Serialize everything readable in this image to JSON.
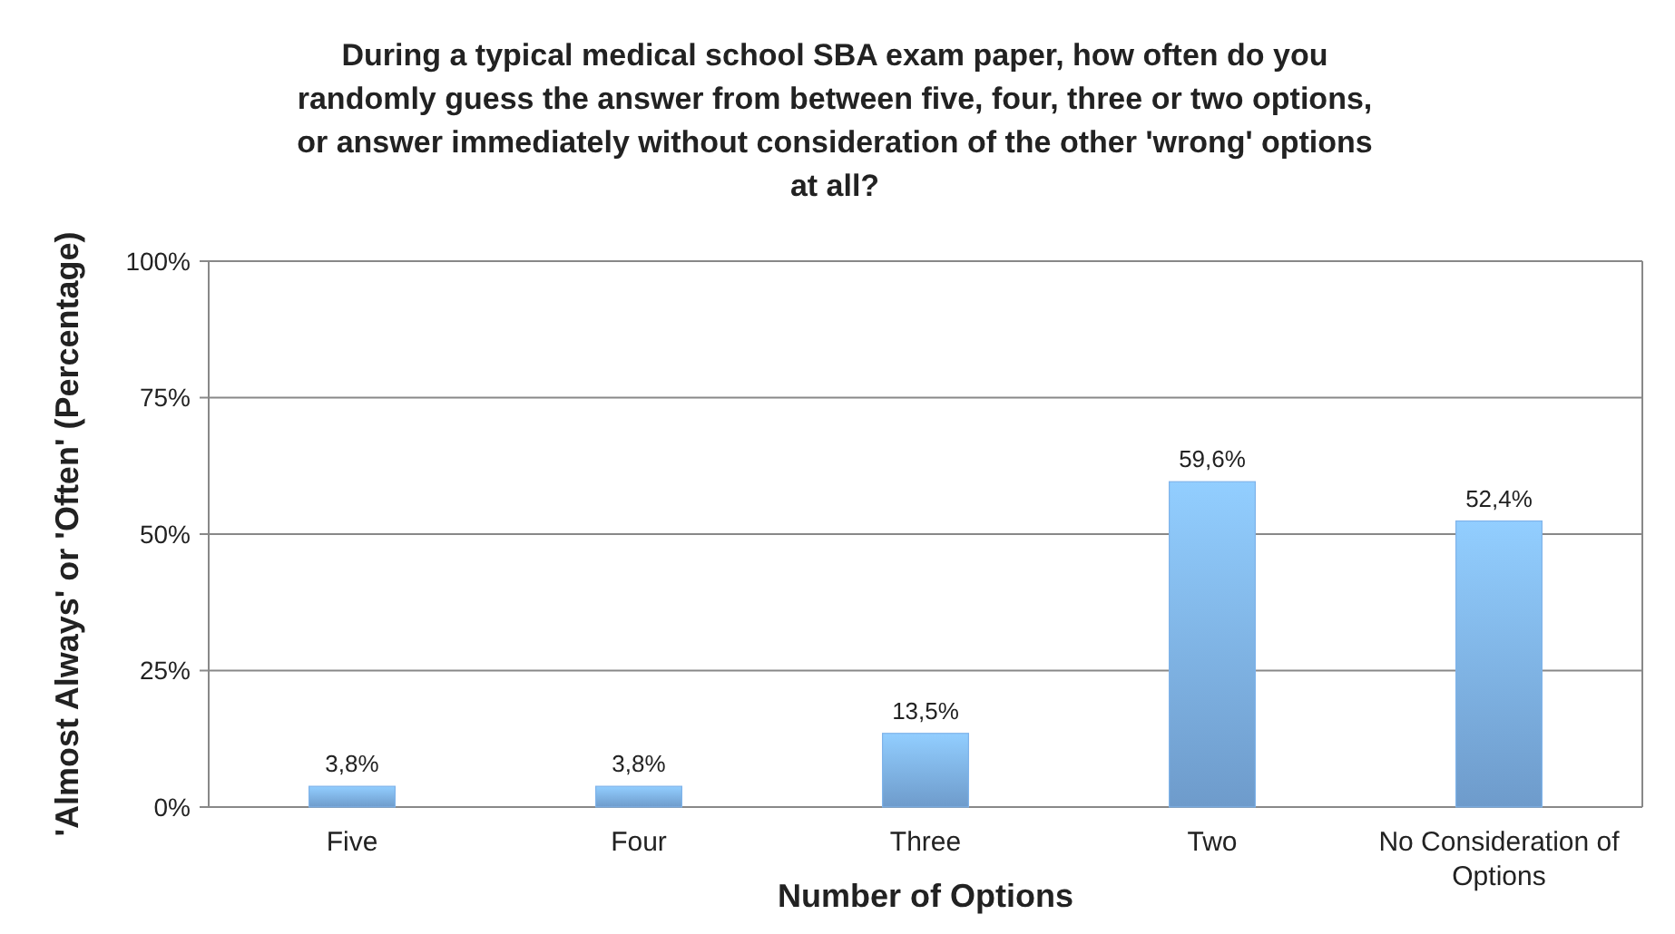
{
  "chart_data": {
    "type": "bar",
    "title": "During a typical medical school SBA exam paper, how often do you randomly guess the answer from between five, four, three or two options, or answer immediately without consideration of the other 'wrong' options at all?",
    "xlabel": "Number of Options",
    "ylabel": "'Almost Always' or 'Often' (Percentage)",
    "categories": [
      "Five",
      "Four",
      "Three",
      "Two",
      "No Consideration of Options"
    ],
    "values": [
      3.8,
      3.8,
      13.5,
      59.6,
      52.4
    ],
    "value_labels": [
      "3,8%",
      "3,8%",
      "13,5%",
      "59,6%",
      "52,4%"
    ],
    "color": "#7fb3ea",
    "ylim": [
      0,
      100
    ],
    "yticks": [
      {
        "value": 0,
        "label": "0%"
      },
      {
        "value": 25,
        "label": "25%"
      },
      {
        "value": 50,
        "label": "50%"
      },
      {
        "value": 75,
        "label": "75%"
      },
      {
        "value": 100,
        "label": "100%"
      }
    ],
    "grid": "y"
  }
}
